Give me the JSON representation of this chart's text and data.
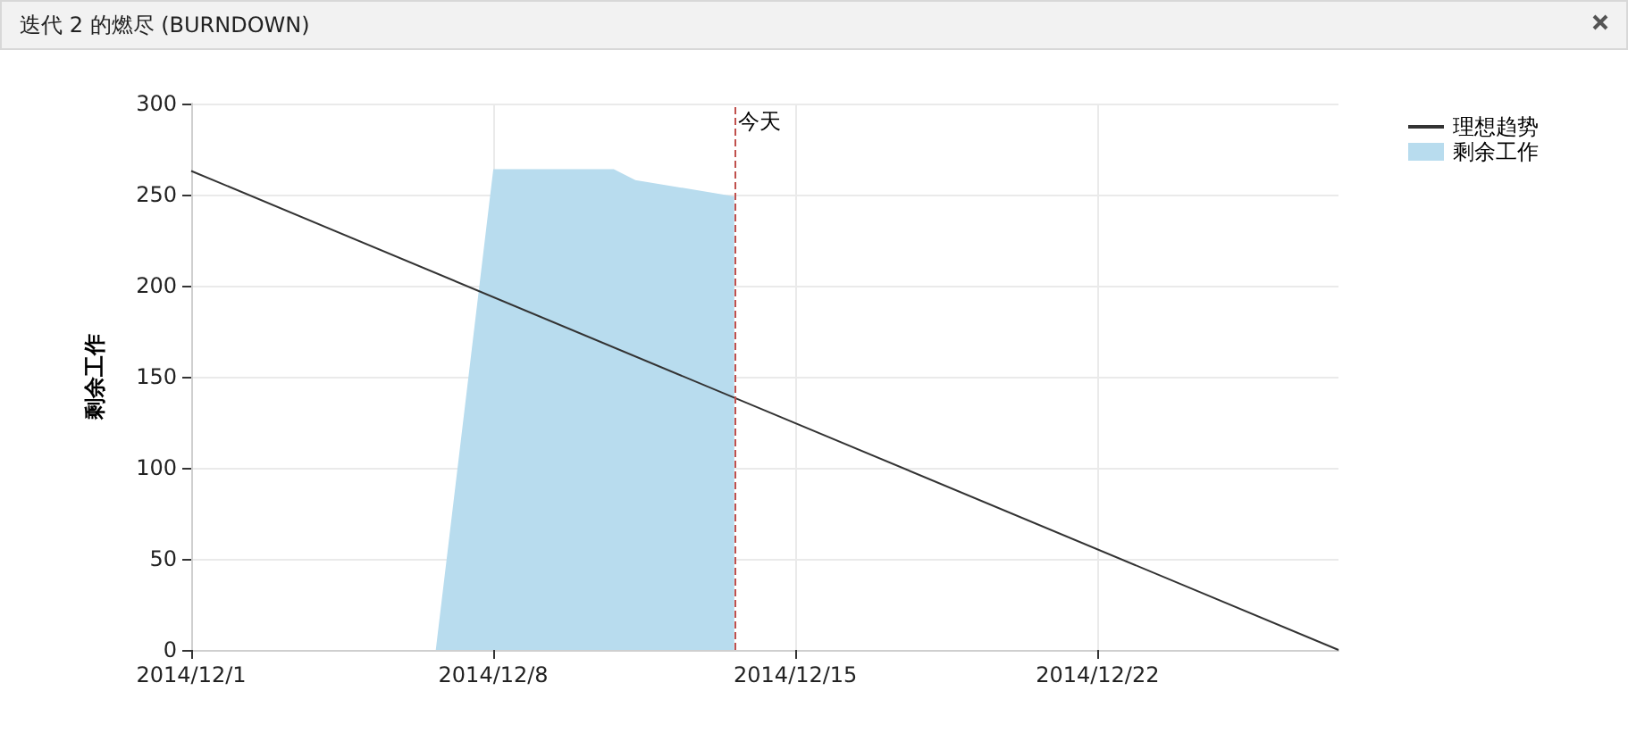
{
  "chart_data": {
    "type": "line",
    "title": "迭代 2 的燃尽 (BURNDOWN)",
    "ylabel": "剩余工作",
    "series": [
      {
        "name": "理想趋势",
        "color": "#333333",
        "x": [
          "2014-12-01",
          "2014-12-27T14:00"
        ],
        "values": [
          263,
          0
        ]
      },
      {
        "name": "剩余工作",
        "type": "area",
        "color": "#b8dcee",
        "x": [
          "2014-12-06T16:00",
          "2014-12-08",
          "2014-12-10T19:00",
          "2014-12-11T07:00",
          "2014-12-13T14:00",
          "2014-12-13T14:00"
        ],
        "values": [
          0,
          264,
          264,
          258,
          249,
          0
        ]
      }
    ],
    "xlim": [
      "2014-12-01",
      "2014-12-27T14:00"
    ],
    "xticks": [
      {
        "value": "2014-12-01",
        "label": "2014/12/1"
      },
      {
        "value": "2014-12-08",
        "label": "2014/12/8"
      },
      {
        "value": "2014-12-15",
        "label": "2014/12/15"
      },
      {
        "value": "2014-12-22",
        "label": "2014/12/22"
      }
    ],
    "ylim": [
      0,
      300
    ],
    "yticks": [
      0,
      50,
      100,
      150,
      200,
      250,
      300
    ],
    "ref_lines": [
      {
        "axis": "x",
        "value": "2014-12-13T14:00",
        "label": "今天",
        "color": "#c0504d",
        "line_style": "dashed"
      }
    ],
    "grid": true,
    "legend": "top right",
    "marker": "none"
  }
}
